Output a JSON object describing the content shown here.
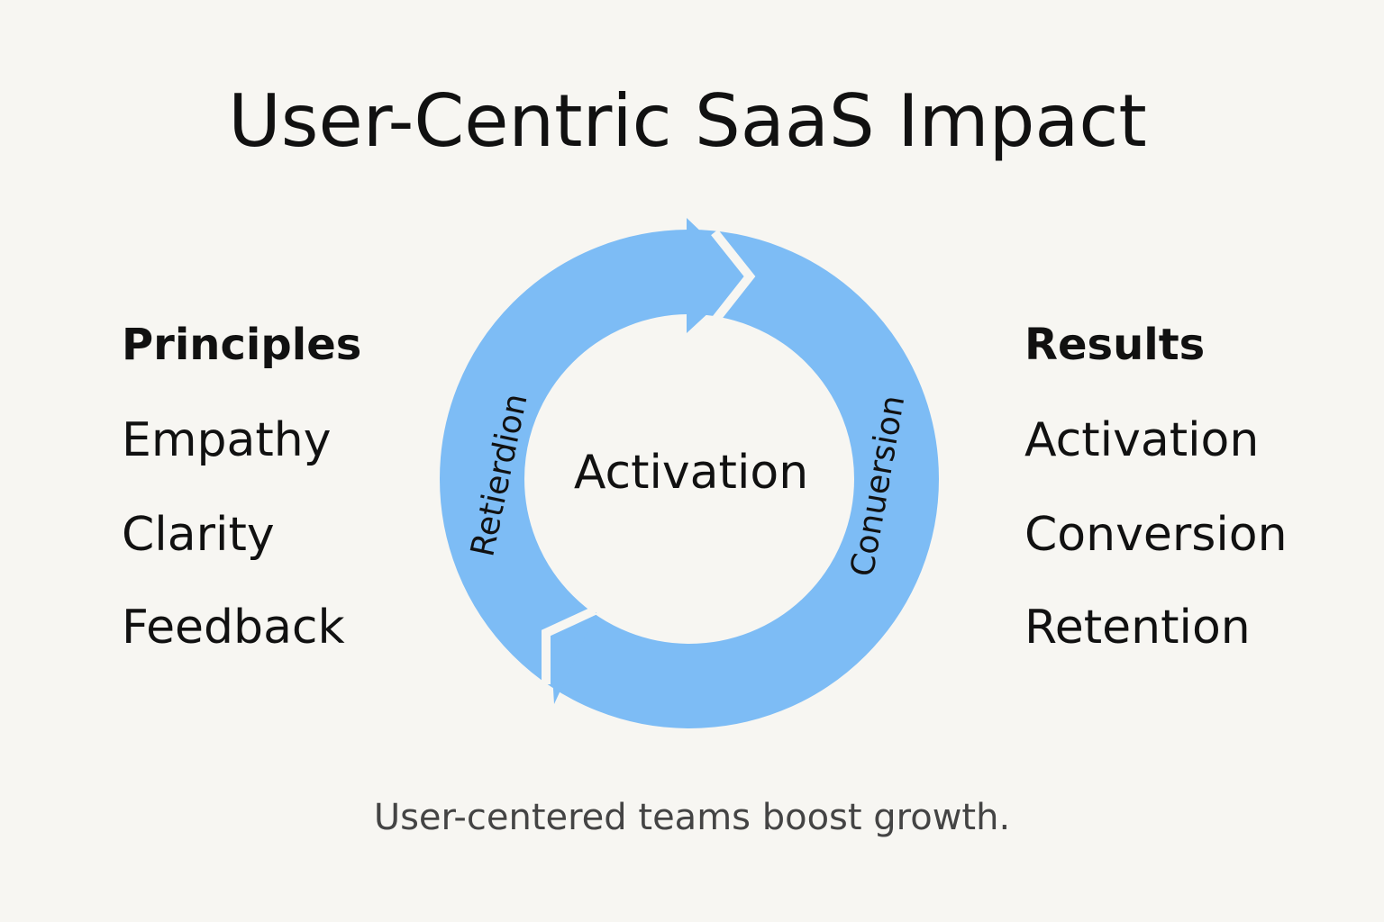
{
  "title": "User-Centric SaaS Impact",
  "principles": {
    "heading": "Principles",
    "items": [
      "Empathy",
      "Clarity",
      "Feedback"
    ]
  },
  "results": {
    "heading": "Results",
    "items": [
      "Activation",
      "Conversion",
      "Retention"
    ]
  },
  "cycle": {
    "center": "Activation",
    "left_arc": "Retierdion",
    "right_arc": "Conuersion"
  },
  "footer": "User-centered teams boost growth."
}
